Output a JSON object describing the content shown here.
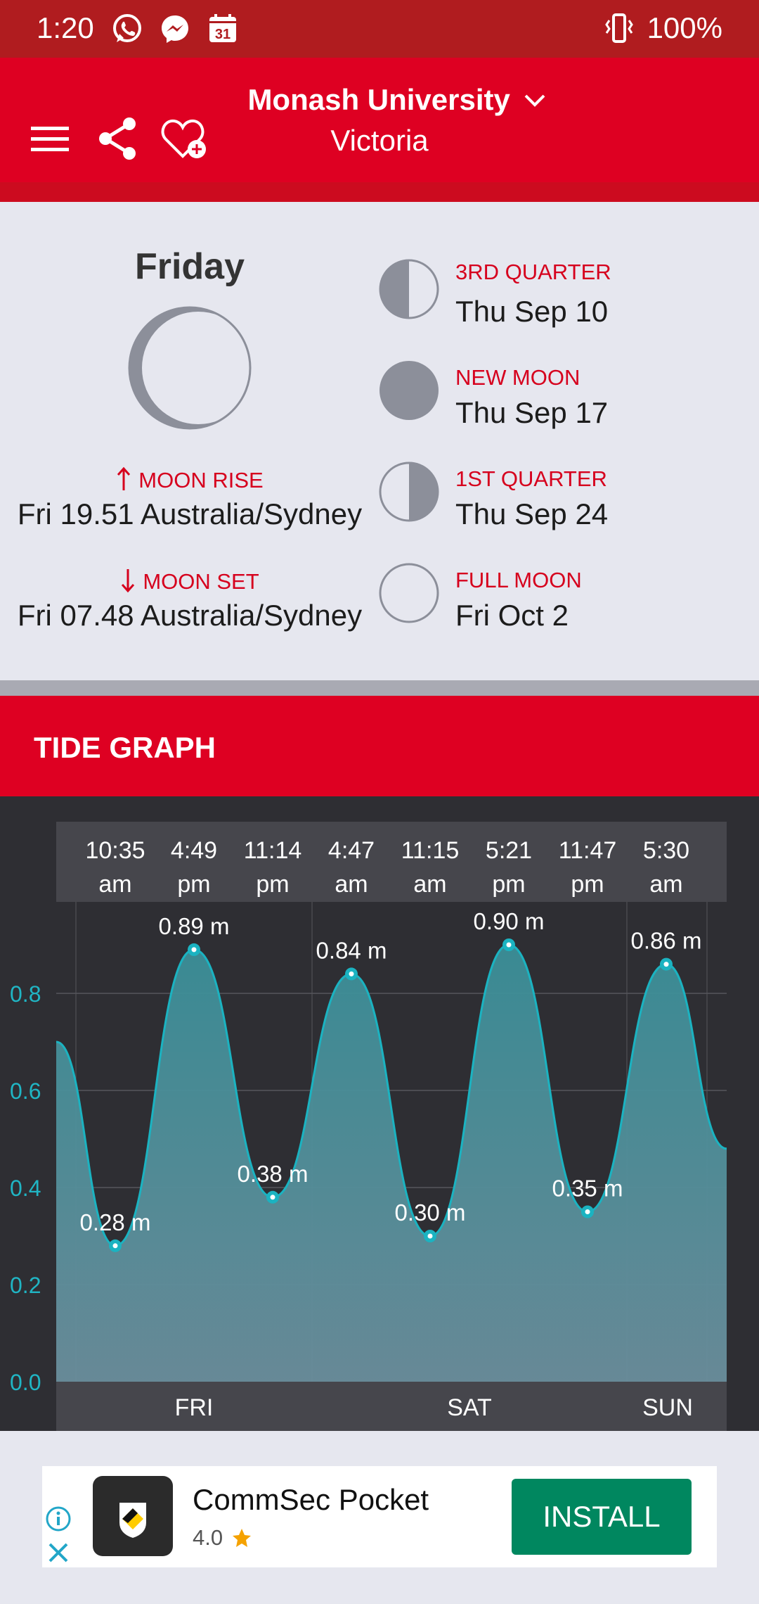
{
  "status_bar": {
    "time": "1:20",
    "battery": "100%",
    "icons": [
      "whatsapp-icon",
      "messenger-icon",
      "calendar-icon",
      "vibrate-icon"
    ],
    "calendar_day": "31"
  },
  "header": {
    "title": "Monash University",
    "subtitle": "Victoria",
    "icons": [
      "menu-icon",
      "share-icon",
      "heart-plus-icon",
      "chevron-down-icon"
    ]
  },
  "moon": {
    "day": "Friday",
    "rise_label": "MOON RISE",
    "rise_value": "Fri 19.51 Australia/Sydney",
    "set_label": "MOON SET",
    "set_value": "Fri 07.48 Australia/Sydney",
    "phases": [
      {
        "label": "3RD QUARTER",
        "date": "Thu Sep 10"
      },
      {
        "label": "NEW MOON",
        "date": "Thu Sep 17"
      },
      {
        "label": "1ST QUARTER",
        "date": "Thu Sep 24"
      },
      {
        "label": "FULL MOON",
        "date": "Fri Oct 2"
      }
    ]
  },
  "tide": {
    "section_title": "TIDE GRAPH",
    "times": [
      {
        "t": "10:35",
        "p": "am"
      },
      {
        "t": "4:49",
        "p": "pm"
      },
      {
        "t": "11:14",
        "p": "pm"
      },
      {
        "t": "4:47",
        "p": "am"
      },
      {
        "t": "11:15",
        "p": "am"
      },
      {
        "t": "5:21",
        "p": "pm"
      },
      {
        "t": "11:47",
        "p": "pm"
      },
      {
        "t": "5:30",
        "p": "am"
      }
    ],
    "points": [
      {
        "height": 0.28,
        "label": "0.28 m"
      },
      {
        "height": 0.89,
        "label": "0.89 m"
      },
      {
        "height": 0.38,
        "label": "0.38 m"
      },
      {
        "height": 0.84,
        "label": "0.84 m"
      },
      {
        "height": 0.3,
        "label": "0.30 m"
      },
      {
        "height": 0.9,
        "label": "0.90 m"
      },
      {
        "height": 0.35,
        "label": "0.35 m"
      },
      {
        "height": 0.86,
        "label": "0.86 m"
      }
    ],
    "start_height": 0.7,
    "end_height": 0.48,
    "y_ticks": [
      "0.8",
      "0.6",
      "0.4",
      "0.2",
      "0.0"
    ],
    "y_range": [
      0,
      1
    ],
    "days": [
      "FRI",
      "SAT",
      "SUN"
    ],
    "colors": {
      "line": "#1bb3c1",
      "fill_top": "#3a8f98",
      "fill_bottom": "#6a8e9c"
    }
  },
  "ad": {
    "app_name": "CommSec Pocket",
    "rating": "4.0",
    "install_label": "INSTALL",
    "icons": [
      "ad-info-icon",
      "ad-close-icon",
      "star-icon"
    ]
  }
}
